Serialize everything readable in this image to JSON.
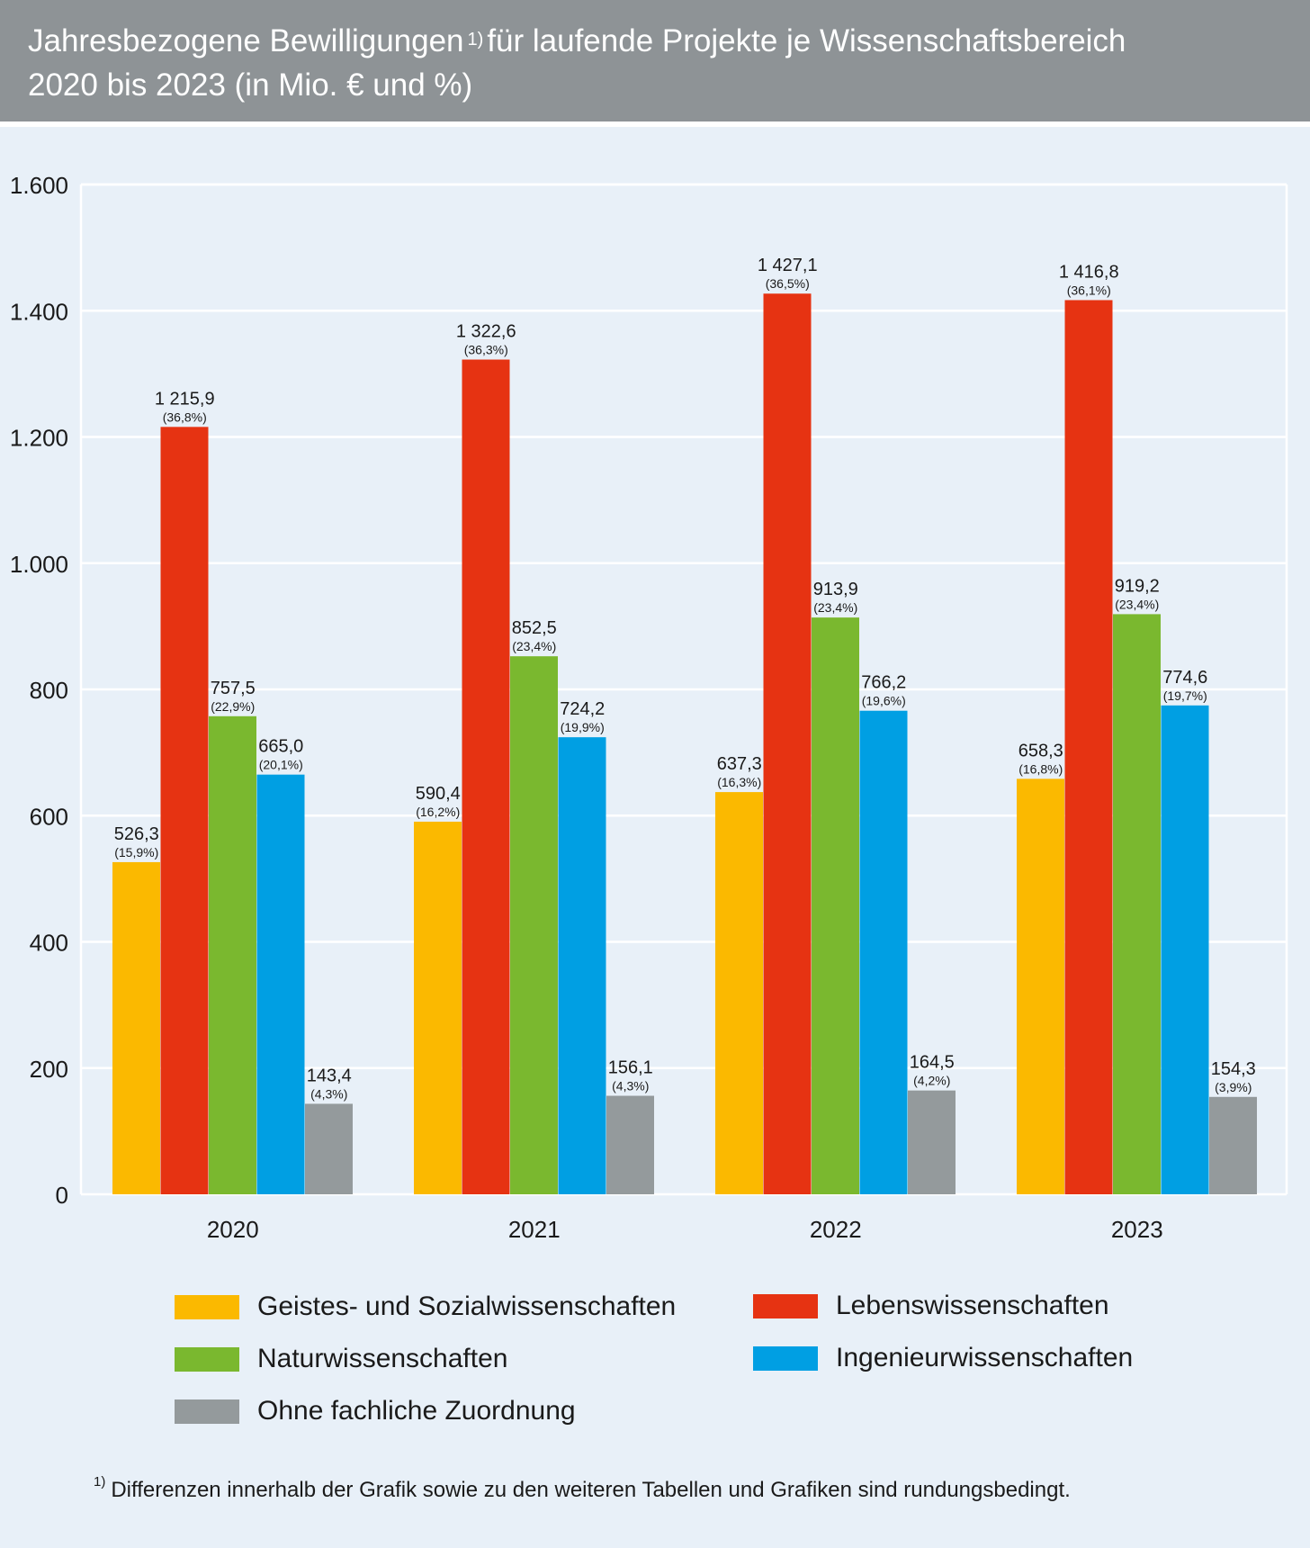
{
  "header": {
    "title_line1_a": "Jahresbezogene Bewilligungen",
    "title_sup": "1)",
    "title_line1_b": "für laufende Projekte je Wissenschaftsbereich",
    "title_line2": "2020 bis 2023 (in Mio. € und %)"
  },
  "footnote": {
    "marker": "1)",
    "text": "Differenzen innerhalb der Grafik sowie zu den weiteren Tabellen und Grafiken sind rundungsbedingt."
  },
  "chart_data": {
    "type": "bar",
    "categories": [
      "2020",
      "2021",
      "2022",
      "2023"
    ],
    "ylim": [
      0,
      1600
    ],
    "yticks": [
      0,
      200,
      400,
      600,
      800,
      1000,
      1200,
      1400,
      1600
    ],
    "ytick_labels": [
      "0",
      "200",
      "400",
      "600",
      "800",
      "1.000",
      "1.200",
      "1.400",
      "1.600"
    ],
    "grid": true,
    "legend_position": "bottom",
    "series": [
      {
        "name": "Geistes- und Sozialwissenschaften",
        "color": "#fbb900",
        "values": [
          526.3,
          590.4,
          637.3,
          658.3
        ],
        "value_labels": [
          "526,3",
          "590,4",
          "637,3",
          "658,3"
        ],
        "pct_labels": [
          "(15,9%)",
          "(16,2%)",
          "(16,3%)",
          "(16,8%)"
        ]
      },
      {
        "name": "Lebenswissenschaften",
        "color": "#e63312",
        "values": [
          1215.9,
          1322.6,
          1427.1,
          1416.8
        ],
        "value_labels": [
          "1 215,9",
          "1 322,6",
          "1 427,1",
          "1 416,8"
        ],
        "pct_labels": [
          "(36,8%)",
          "(36,3%)",
          "(36,5%)",
          "(36,1%)"
        ]
      },
      {
        "name": "Naturwissenschaften",
        "color": "#7ab82f",
        "values": [
          757.5,
          852.5,
          913.9,
          919.2
        ],
        "value_labels": [
          "757,5",
          "852,5",
          "913,9",
          "919,2"
        ],
        "pct_labels": [
          "(22,9%)",
          "(23,4%)",
          "(23,4%)",
          "(23,4%)"
        ]
      },
      {
        "name": "Ingenieurwissenschaften",
        "color": "#009fe3",
        "values": [
          665.0,
          724.2,
          766.2,
          774.6
        ],
        "value_labels": [
          "665,0",
          "724,2",
          "766,2",
          "774,6"
        ],
        "pct_labels": [
          "(20,1%)",
          "(19,9%)",
          "(19,6%)",
          "(19,7%)"
        ]
      },
      {
        "name": "Ohne fachliche Zuordnung",
        "color": "#949a9c",
        "values": [
          143.4,
          156.1,
          164.5,
          154.3
        ],
        "value_labels": [
          "143,4",
          "156,1",
          "164,5",
          "154,3"
        ],
        "pct_labels": [
          "(4,3%)",
          "(4,3%)",
          "(4,2%)",
          "(3,9%)"
        ]
      }
    ]
  }
}
